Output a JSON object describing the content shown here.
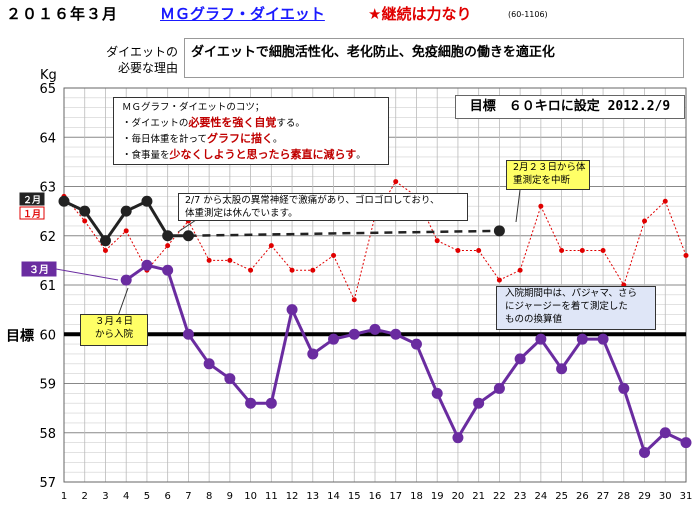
{
  "header": {
    "title": "２０１６年３月",
    "link": "ＭＧグラフ・ダイエット",
    "motto": "★継続は力なり",
    "code": "(60-1106)"
  },
  "reason": {
    "label_line1": "ダイエットの",
    "label_line2": "必要な理由",
    "text": "ダイエットで細胞活性化、老化防止、免疫細胞の働きを適正化"
  },
  "tips": {
    "title": "ＭＧグラフ・ダイエットのコツ；",
    "line1_pre": "・ダイエットの",
    "line1_red": "必要性を強く自覚",
    "line1_post": "する。",
    "line2_pre": "・毎日体重を計って",
    "line2_red": "グラフに描く",
    "line2_post": "。",
    "line3_pre": "・食事量を",
    "line3_red": "少なくしようと思ったら素直に減らす",
    "line3_post": "。"
  },
  "goal_note": "目標　６０キロに設定 2012.2/9",
  "callouts": {
    "mar4_line1": "３月４日",
    "mar4_line2": "から入院",
    "feb23_line1": "2月２３日から体",
    "feb23_line2": "重測定を中断",
    "feb7_line1": "2/7 から太股の異常神経で激痛があり、ゴロゴロしており、",
    "feb7_line2": "体重測定は休んでいます。",
    "hosp_line1": "入院期間中は、パジャマ、さら",
    "hosp_line2": "にジャージーを着て測定した",
    "hosp_line3": "ものの換算値"
  },
  "colors": {
    "march": "#6a2ca0",
    "january": "#e00000",
    "february": "#222222",
    "goal": "#000000",
    "link": "#1a1aff",
    "motto": "#e00000"
  },
  "chart_data": {
    "type": "line",
    "ylabel": "Kg",
    "ylim": [
      57,
      65
    ],
    "yticks": [
      57,
      58,
      59,
      60,
      61,
      62,
      63,
      64,
      65
    ],
    "goal": {
      "value": 60,
      "label": "目標"
    },
    "x": [
      1,
      2,
      3,
      4,
      5,
      6,
      7,
      8,
      9,
      10,
      11,
      12,
      13,
      14,
      15,
      16,
      17,
      18,
      19,
      20,
      21,
      22,
      23,
      24,
      25,
      26,
      27,
      28,
      29,
      30,
      31
    ],
    "series": [
      {
        "name": "１月",
        "style": "thin-red-dots",
        "values": [
          62.8,
          62.3,
          61.7,
          62.1,
          61.3,
          61.8,
          62.3,
          61.5,
          61.5,
          61.3,
          61.8,
          61.3,
          61.3,
          61.6,
          60.7,
          62.4,
          63.1,
          62.8,
          61.9,
          61.7,
          61.7,
          61.1,
          61.3,
          62.6,
          61.7,
          61.7,
          61.7,
          61.0,
          62.3,
          62.7,
          61.6
        ]
      },
      {
        "name": "２月",
        "style": "thick-black",
        "values": [
          62.7,
          62.5,
          61.9,
          62.5,
          62.7,
          62.0,
          62.0,
          null,
          null,
          null,
          null,
          null,
          null,
          null,
          null,
          null,
          null,
          null,
          null,
          null,
          null,
          62.1,
          null,
          null,
          null,
          null,
          null,
          null,
          null,
          null,
          null
        ]
      },
      {
        "name": "３月",
        "style": "thick-purple",
        "values": [
          null,
          null,
          null,
          61.1,
          61.4,
          61.3,
          60.0,
          59.4,
          59.1,
          58.6,
          58.6,
          60.5,
          59.6,
          59.9,
          60.0,
          60.1,
          60.0,
          59.8,
          58.8,
          57.9,
          58.6,
          58.9,
          59.5,
          59.9,
          59.3,
          59.9,
          59.9,
          58.9,
          57.6,
          58.0,
          57.8
        ]
      }
    ]
  }
}
